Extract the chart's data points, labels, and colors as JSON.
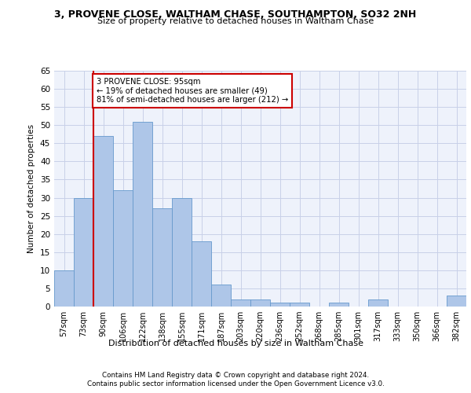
{
  "title1": "3, PROVENE CLOSE, WALTHAM CHASE, SOUTHAMPTON, SO32 2NH",
  "title2": "Size of property relative to detached houses in Waltham Chase",
  "xlabel": "Distribution of detached houses by size in Waltham Chase",
  "ylabel": "Number of detached properties",
  "bar_labels": [
    "57sqm",
    "73sqm",
    "90sqm",
    "106sqm",
    "122sqm",
    "138sqm",
    "155sqm",
    "171sqm",
    "187sqm",
    "203sqm",
    "220sqm",
    "236sqm",
    "252sqm",
    "268sqm",
    "285sqm",
    "301sqm",
    "317sqm",
    "333sqm",
    "350sqm",
    "366sqm",
    "382sqm"
  ],
  "bar_values": [
    10,
    30,
    47,
    32,
    51,
    27,
    30,
    18,
    6,
    2,
    2,
    1,
    1,
    0,
    1,
    0,
    2,
    0,
    0,
    0,
    3
  ],
  "bar_color": "#aec6e8",
  "bar_edge_color": "#6699cc",
  "vline_x_idx": 2,
  "vline_color": "#cc0000",
  "annotation_text": "3 PROVENE CLOSE: 95sqm\n← 19% of detached houses are smaller (49)\n81% of semi-detached houses are larger (212) →",
  "annotation_box_color": "#ffffff",
  "annotation_box_edge": "#cc0000",
  "ylim": [
    0,
    65
  ],
  "yticks": [
    0,
    5,
    10,
    15,
    20,
    25,
    30,
    35,
    40,
    45,
    50,
    55,
    60,
    65
  ],
  "footer1": "Contains HM Land Registry data © Crown copyright and database right 2024.",
  "footer2": "Contains public sector information licensed under the Open Government Licence v3.0.",
  "bg_color": "#eef2fb",
  "grid_color": "#c8d0e8"
}
